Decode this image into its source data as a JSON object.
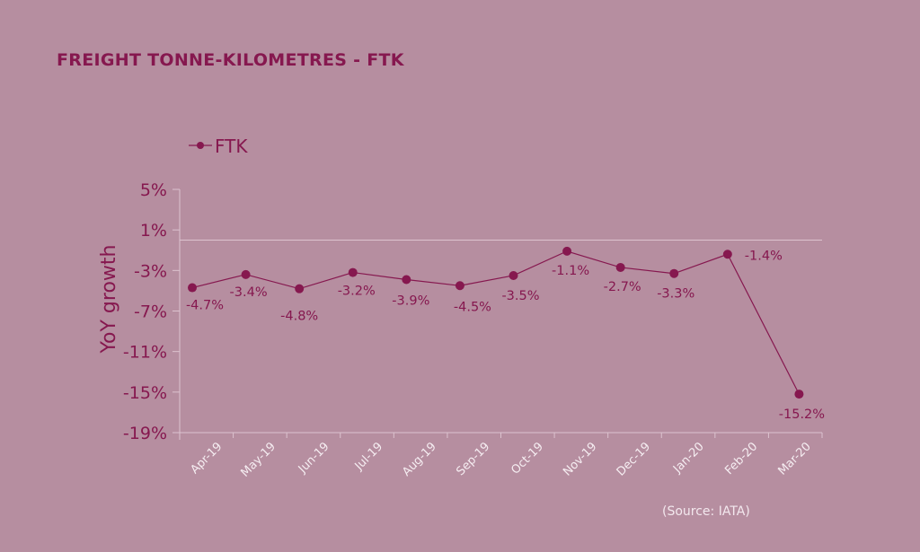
{
  "title": "FREIGHT TONNE-KILOMETRES - FTK",
  "source": "(Source: IATA)",
  "colors": {
    "background": "#b68ea0",
    "series": "#86184f",
    "axis": "#dcc3cf",
    "tick_label": "#f6eef2"
  },
  "chart_data": {
    "type": "line",
    "title": "FREIGHT TONNE-KILOMETRES - FTK",
    "xlabel": "",
    "ylabel": "YoY growth",
    "categories": [
      "Apr-19",
      "May-19",
      "Jun-19",
      "Jul-19",
      "Aug-19",
      "Sep-19",
      "Oct-19",
      "Nov-19",
      "Dec-19",
      "Jan-20",
      "Feb-20",
      "Mar-20"
    ],
    "series": [
      {
        "name": "FTK",
        "values": [
          -4.7,
          -3.4,
          -4.8,
          -3.2,
          -3.9,
          -4.5,
          -3.5,
          -1.1,
          -2.7,
          -3.3,
          -1.4,
          -15.2
        ]
      }
    ],
    "data_labels": [
      "-4.7%",
      "-3.4%",
      "-4.8%",
      "-3.2%",
      "-3.9%",
      "-4.5%",
      "-3.5%",
      "-1.1%",
      "-2.7%",
      "-3.3%",
      "-1.4%",
      "-15.2%"
    ],
    "yticks": [
      5,
      1,
      -3,
      -7,
      -11,
      -15,
      -19
    ],
    "ytick_labels": [
      "5%",
      "1%",
      "-3%",
      "-7%",
      "-11%",
      "-15%",
      "-19%"
    ],
    "ylim": [
      -19,
      5
    ],
    "grid": false,
    "reference_line": 0,
    "legend": "top-left"
  }
}
